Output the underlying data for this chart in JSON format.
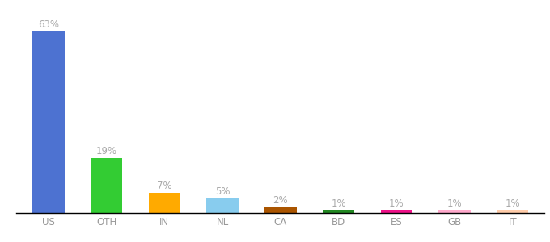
{
  "categories": [
    "US",
    "OTH",
    "IN",
    "NL",
    "CA",
    "BD",
    "ES",
    "GB",
    "IT"
  ],
  "values": [
    63,
    19,
    7,
    5,
    2,
    1,
    1,
    1,
    1
  ],
  "labels": [
    "63%",
    "19%",
    "7%",
    "5%",
    "2%",
    "1%",
    "1%",
    "1%",
    "1%"
  ],
  "colors": [
    "#4d72d1",
    "#33cc33",
    "#ffaa00",
    "#88ccee",
    "#aa5500",
    "#228822",
    "#ee1188",
    "#ffaacc",
    "#ffccaa"
  ],
  "background_color": "#ffffff",
  "label_color": "#aaaaaa",
  "label_fontsize": 8.5,
  "tick_fontsize": 8.5,
  "tick_color": "#999999",
  "ylim": [
    0,
    68
  ],
  "bar_width": 0.55,
  "fig_width": 6.8,
  "fig_height": 3.0,
  "fig_dpi": 100
}
